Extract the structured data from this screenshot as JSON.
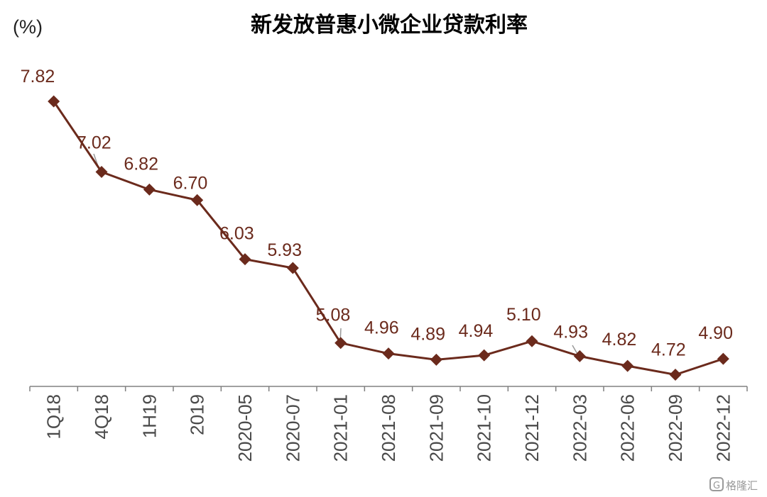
{
  "chart_data": {
    "type": "line",
    "title": "新发放普惠小微企业贷款利率",
    "unit_label": "(%)",
    "categories": [
      "1Q18",
      "4Q18",
      "1H19",
      "2019",
      "2020-05",
      "2020-07",
      "2021-01",
      "2021-08",
      "2021-09",
      "2021-10",
      "2021-12",
      "2022-03",
      "2022-06",
      "2022-09",
      "2022-12"
    ],
    "series": [
      {
        "values": [
          7.82,
          7.02,
          6.82,
          6.7,
          6.03,
          5.93,
          5.08,
          4.96,
          4.89,
          4.94,
          5.1,
          4.93,
          4.82,
          4.72,
          4.9
        ]
      }
    ],
    "data_labels": [
      "7.82",
      "7.02",
      "6.82",
      "6.70",
      "6.03",
      "5.93",
      "5.08",
      "4.96",
      "4.89",
      "4.94",
      "5.10",
      "4.93",
      "4.82",
      "4.72",
      "4.90"
    ],
    "ylim": [
      4.5,
      8.0
    ],
    "grid": false,
    "line_color": "#6b2a1c",
    "marker": "diamond"
  },
  "watermark": "格隆汇"
}
